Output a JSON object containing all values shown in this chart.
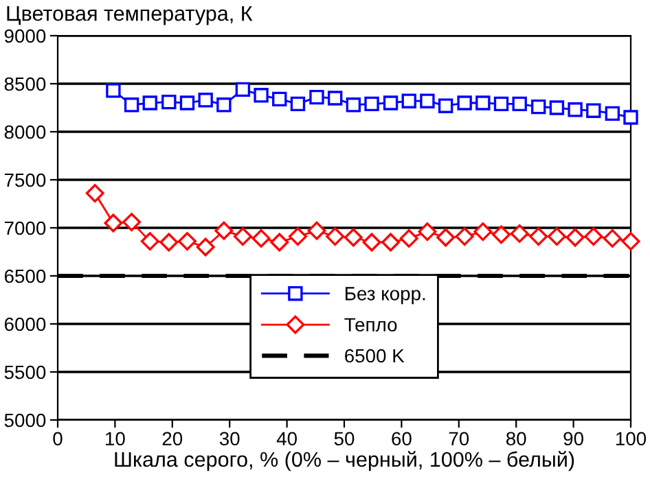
{
  "chart_data": {
    "type": "line",
    "ylabel": "Цветовая температура, К",
    "xlabel": "Шкала серого, % (0% – черный, 100% – белый)",
    "xlim": [
      0,
      100
    ],
    "ylim": [
      5000,
      9000
    ],
    "xticks": [
      0,
      10,
      20,
      30,
      40,
      50,
      60,
      70,
      80,
      90,
      100
    ],
    "yticks": [
      5000,
      5500,
      6000,
      6500,
      7000,
      7500,
      8000,
      8500,
      9000
    ],
    "grid": "y",
    "legend": "bottom",
    "series": [
      {
        "name": "Без корр.",
        "color": "#0000ff",
        "marker": "square",
        "x": [
          9.7,
          12.9,
          16.1,
          19.4,
          22.6,
          25.8,
          29.0,
          32.3,
          35.5,
          38.7,
          41.9,
          45.2,
          48.4,
          51.6,
          54.8,
          58.1,
          61.3,
          64.5,
          67.7,
          71.0,
          74.2,
          77.4,
          80.6,
          83.9,
          87.1,
          90.3,
          93.5,
          96.8,
          100
        ],
        "values": [
          8430,
          8280,
          8300,
          8310,
          8300,
          8330,
          8280,
          8440,
          8380,
          8340,
          8290,
          8360,
          8350,
          8280,
          8290,
          8300,
          8320,
          8320,
          8270,
          8300,
          8300,
          8290,
          8290,
          8260,
          8250,
          8230,
          8220,
          8190,
          8150
        ]
      },
      {
        "name": "Тепло",
        "color": "#ff0000",
        "marker": "diamond",
        "x": [
          6.5,
          9.7,
          12.9,
          16.1,
          19.4,
          22.6,
          25.8,
          29.0,
          32.3,
          35.5,
          38.7,
          41.9,
          45.2,
          48.4,
          51.6,
          54.8,
          58.1,
          61.3,
          64.5,
          67.7,
          71.0,
          74.2,
          77.4,
          80.6,
          83.9,
          87.1,
          90.3,
          93.5,
          96.8,
          100
        ],
        "values": [
          7360,
          7050,
          7060,
          6860,
          6850,
          6860,
          6800,
          6970,
          6910,
          6890,
          6850,
          6910,
          6970,
          6910,
          6900,
          6850,
          6850,
          6890,
          6960,
          6900,
          6910,
          6960,
          6930,
          6940,
          6910,
          6910,
          6900,
          6910,
          6890,
          6860
        ]
      }
    ],
    "ref_lines": [
      {
        "axis": "y",
        "value": 6500,
        "label": "6500 K",
        "color": "#000000",
        "line_style": "dashed"
      }
    ]
  }
}
